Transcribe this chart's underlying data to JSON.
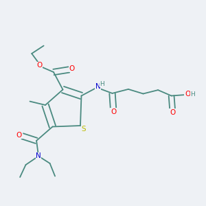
{
  "background_color": "#eef1f5",
  "bond_color": "#4a8a80",
  "atom_colors": {
    "O": "#ff0000",
    "N": "#0000cc",
    "S": "#bbbb00",
    "H": "#4a8a80",
    "C": "#4a8a80"
  },
  "figsize": [
    3.0,
    3.0
  ],
  "dpi": 100,
  "lw": 1.3
}
